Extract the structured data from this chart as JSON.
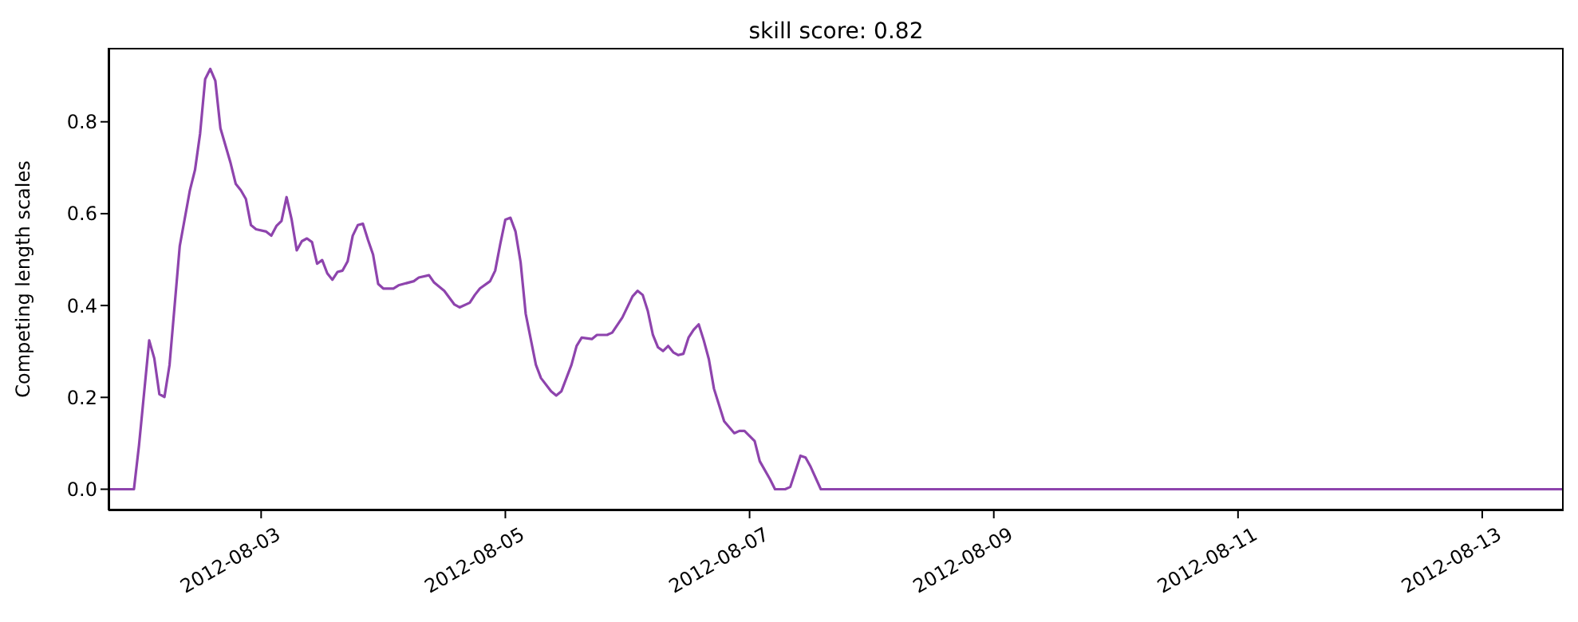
{
  "chart_data": {
    "type": "line",
    "title": "skill score: 0.82",
    "ylabel": "Competing length scales",
    "x": [
      "2012-08-01T18:00",
      "2012-08-01T23:00",
      "2012-08-02T00:00",
      "2012-08-02T02:00",
      "2012-08-02T03:00",
      "2012-08-02T04:00",
      "2012-08-02T05:00",
      "2012-08-02T06:00",
      "2012-08-02T08:00",
      "2012-08-02T10:00",
      "2012-08-02T11:00",
      "2012-08-02T12:00",
      "2012-08-02T13:00",
      "2012-08-02T14:00",
      "2012-08-02T15:00",
      "2012-08-02T16:00",
      "2012-08-02T18:00",
      "2012-08-02T19:00",
      "2012-08-02T20:00",
      "2012-08-02T21:00",
      "2012-08-02T22:00",
      "2012-08-02T23:00",
      "2012-08-03T01:00",
      "2012-08-03T02:00",
      "2012-08-03T03:00",
      "2012-08-03T04:00",
      "2012-08-03T05:00",
      "2012-08-03T06:00",
      "2012-08-03T07:00",
      "2012-08-03T08:00",
      "2012-08-03T09:00",
      "2012-08-03T10:00",
      "2012-08-03T11:00",
      "2012-08-03T12:00",
      "2012-08-03T13:00",
      "2012-08-03T14:00",
      "2012-08-03T15:00",
      "2012-08-03T16:00",
      "2012-08-03T17:00",
      "2012-08-03T18:00",
      "2012-08-03T19:00",
      "2012-08-03T20:00",
      "2012-08-03T21:00",
      "2012-08-03T22:00",
      "2012-08-03T23:00",
      "2012-08-04T00:00",
      "2012-08-04T02:00",
      "2012-08-04T03:00",
      "2012-08-04T04:00",
      "2012-08-04T06:00",
      "2012-08-04T07:00",
      "2012-08-04T09:00",
      "2012-08-04T10:00",
      "2012-08-04T12:00",
      "2012-08-04T14:00",
      "2012-08-04T15:00",
      "2012-08-04T17:00",
      "2012-08-04T18:00",
      "2012-08-04T19:00",
      "2012-08-04T21:00",
      "2012-08-04T22:00",
      "2012-08-04T23:00",
      "2012-08-05T00:00",
      "2012-08-05T01:00",
      "2012-08-05T02:00",
      "2012-08-05T03:00",
      "2012-08-05T04:00",
      "2012-08-05T06:00",
      "2012-08-05T07:00",
      "2012-08-05T09:00",
      "2012-08-05T10:00",
      "2012-08-05T11:00",
      "2012-08-05T13:00",
      "2012-08-05T14:00",
      "2012-08-05T15:00",
      "2012-08-05T17:00",
      "2012-08-05T18:00",
      "2012-08-05T20:00",
      "2012-08-05T21:00",
      "2012-08-05T23:00",
      "2012-08-06T01:00",
      "2012-08-06T02:00",
      "2012-08-06T03:00",
      "2012-08-06T04:00",
      "2012-08-06T05:00",
      "2012-08-06T06:00",
      "2012-08-06T07:00",
      "2012-08-06T08:00",
      "2012-08-06T09:00",
      "2012-08-06T10:00",
      "2012-08-06T11:00",
      "2012-08-06T12:00",
      "2012-08-06T13:00",
      "2012-08-06T14:00",
      "2012-08-06T15:00",
      "2012-08-06T16:00",
      "2012-08-06T17:00",
      "2012-08-06T19:00",
      "2012-08-06T21:00",
      "2012-08-06T22:00",
      "2012-08-06T23:00",
      "2012-08-07T01:00",
      "2012-08-07T02:00",
      "2012-08-07T04:00",
      "2012-08-07T05:00",
      "2012-08-07T07:00",
      "2012-08-07T08:00",
      "2012-08-07T10:00",
      "2012-08-07T11:00",
      "2012-08-07T12:00",
      "2012-08-07T14:00",
      "2012-08-13T16:00"
    ],
    "series": [
      {
        "color": "#8e44ad",
        "values": [
          0,
          0,
          0.096,
          0.324,
          0.285,
          0.207,
          0.201,
          0.271,
          0.529,
          0.651,
          0.695,
          0.774,
          0.893,
          0.915,
          0.889,
          0.786,
          0.71,
          0.665,
          0.651,
          0.632,
          0.575,
          0.566,
          0.561,
          0.552,
          0.573,
          0.584,
          0.636,
          0.587,
          0.52,
          0.54,
          0.546,
          0.538,
          0.491,
          0.499,
          0.47,
          0.456,
          0.473,
          0.476,
          0.496,
          0.552,
          0.575,
          0.578,
          0.543,
          0.511,
          0.447,
          0.437,
          0.437,
          0.444,
          0.447,
          0.453,
          0.461,
          0.466,
          0.45,
          0.432,
          0.402,
          0.396,
          0.406,
          0.423,
          0.437,
          0.453,
          0.476,
          0.534,
          0.587,
          0.591,
          0.561,
          0.494,
          0.382,
          0.271,
          0.242,
          0.213,
          0.204,
          0.213,
          0.271,
          0.312,
          0.33,
          0.327,
          0.336,
          0.336,
          0.341,
          0.374,
          0.42,
          0.432,
          0.423,
          0.388,
          0.336,
          0.309,
          0.301,
          0.312,
          0.298,
          0.292,
          0.295,
          0.33,
          0.347,
          0.359,
          0.324,
          0.283,
          0.219,
          0.148,
          0.122,
          0.127,
          0.127,
          0.105,
          0.061,
          0.022,
          0,
          0,
          0.005,
          0.073,
          0.069,
          0.049,
          0,
          0
        ]
      }
    ],
    "xlim": [
      "2012-08-01T18:00",
      "2012-08-13T16:00"
    ],
    "xticks": [
      "2012-08-03",
      "2012-08-05",
      "2012-08-07",
      "2012-08-09",
      "2012-08-11",
      "2012-08-13"
    ],
    "ylim": [
      -0.046,
      0.961
    ],
    "yticks": [
      {
        "value": 0,
        "label": "0.0"
      },
      {
        "value": 0.2,
        "label": "0.2"
      },
      {
        "value": 0.4,
        "label": "0.4"
      },
      {
        "value": 0.6,
        "label": "0.6"
      },
      {
        "value": 0.8,
        "label": "0.8"
      }
    ],
    "grid": false,
    "legend": false,
    "marker": "none",
    "line_style": "solid"
  }
}
